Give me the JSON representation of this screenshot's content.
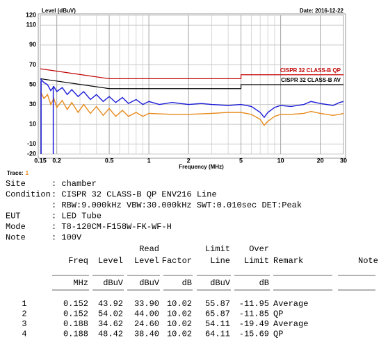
{
  "chart_data": {
    "type": "line",
    "y_label": "Level (dBuV)",
    "x_label": "Frequency (MHz)",
    "date": "Date: 2016-12-22",
    "log_x": true,
    "grid": true,
    "minor_grid": true,
    "xlim": [
      0.15,
      30
    ],
    "ylim": [
      -20,
      120
    ],
    "xticks": [
      0.15,
      0.2,
      0.5,
      1,
      2,
      5,
      10,
      20,
      30
    ],
    "yticks": [
      -20,
      -10,
      10,
      30,
      50,
      70,
      90,
      110,
      120
    ],
    "series": [
      {
        "name": "CISPR 32 CLASS-B QP",
        "color": "#c00000",
        "x": [
          0.15,
          0.5,
          5,
          5,
          30
        ],
        "values": [
          66,
          56,
          56,
          60,
          60
        ]
      },
      {
        "name": "CISPR 32 CLASS-B AV",
        "color": "#000000",
        "x": [
          0.15,
          0.5,
          5,
          5,
          30
        ],
        "values": [
          56,
          46,
          46,
          50,
          50
        ]
      },
      {
        "color": "#1a1ad8",
        "x": [
          0.15,
          0.16,
          0.17,
          0.18,
          0.19,
          0.2,
          0.22,
          0.24,
          0.26,
          0.29,
          0.32,
          0.36,
          0.4,
          0.45,
          0.5,
          0.56,
          0.63,
          0.7,
          0.8,
          0.9,
          1,
          1.2,
          1.5,
          2,
          2.5,
          3,
          4,
          5,
          6,
          7,
          7.5,
          8,
          9,
          10,
          12,
          15,
          17,
          20,
          25,
          28,
          30
        ],
        "values": [
          56,
          52,
          50,
          44,
          48,
          43,
          47,
          40,
          45,
          38,
          43,
          35,
          40,
          33,
          38,
          32,
          37,
          31,
          35,
          30,
          33,
          30,
          32,
          30,
          31,
          30,
          29,
          30,
          28,
          22,
          17,
          22,
          27,
          29,
          28,
          30,
          33,
          31,
          29,
          32,
          33
        ]
      },
      {
        "color": "#e8891a",
        "x": [
          0.15,
          0.16,
          0.17,
          0.18,
          0.19,
          0.2,
          0.22,
          0.24,
          0.26,
          0.29,
          0.32,
          0.36,
          0.4,
          0.45,
          0.5,
          0.56,
          0.63,
          0.7,
          0.8,
          0.9,
          1,
          1.5,
          2,
          3,
          4,
          5,
          6,
          7,
          7.5,
          8,
          9,
          10,
          12,
          15,
          17,
          20,
          25,
          28,
          30
        ],
        "values": [
          43,
          36,
          40,
          30,
          36,
          27,
          34,
          25,
          32,
          22,
          30,
          21,
          28,
          19,
          26,
          18,
          24,
          18,
          22,
          18,
          21,
          20,
          20,
          21,
          22,
          22,
          20,
          15,
          9,
          13,
          18,
          20,
          20,
          21,
          23,
          21,
          19,
          20,
          21
        ]
      }
    ],
    "markers": {
      "color": "#1a1ad8",
      "x": [
        0.152,
        0.188
      ],
      "values": [
        54.02,
        48.42
      ]
    }
  },
  "trace": {
    "label": "Trace:",
    "value": "1"
  },
  "info": [
    {
      "label": "Site",
      "value": ": chamber"
    },
    {
      "label": "Condition",
      "value": ": CISPR 32 CLASS-B QP ENV216 Line"
    },
    {
      "value": ": RBW:9.000kHz VBW:30.000kHz SWT:0.010sec DET:Peak"
    },
    {
      "label": "EUT",
      "value": ": LED Tube"
    },
    {
      "label": "Mode",
      "value": ": T8-120CM-F158W-FK-WF-H"
    },
    {
      "label": "Note",
      "value": ": 100V"
    }
  ],
  "table": {
    "columns": [
      {
        "name": "Freq",
        "unit": "MHz"
      },
      {
        "name": "Level",
        "unit": "dBuV"
      },
      {
        "top": "Read",
        "name": "Level",
        "unit": "dBuV"
      },
      {
        "name": "Factor",
        "unit": "dB"
      },
      {
        "top": "Limit",
        "name": "Line",
        "unit": "dBuV"
      },
      {
        "top": "Over",
        "name": "Limit",
        "unit": "dB"
      },
      {
        "name": "Remark"
      },
      {
        "name": "Note"
      }
    ],
    "rows": [
      [
        "1",
        "0.152",
        "43.92",
        "33.90",
        "10.02",
        "55.87",
        "-11.95",
        "Average"
      ],
      [
        "2",
        "0.152",
        "54.02",
        "44.00",
        "10.02",
        "65.87",
        "-11.85",
        "QP"
      ],
      [
        "3",
        "0.188",
        "34.62",
        "24.60",
        "10.02",
        "54.11",
        "-19.49",
        "Average"
      ],
      [
        "4",
        "0.188",
        "48.42",
        "38.40",
        "10.02",
        "64.11",
        "-15.69",
        "QP"
      ]
    ]
  }
}
